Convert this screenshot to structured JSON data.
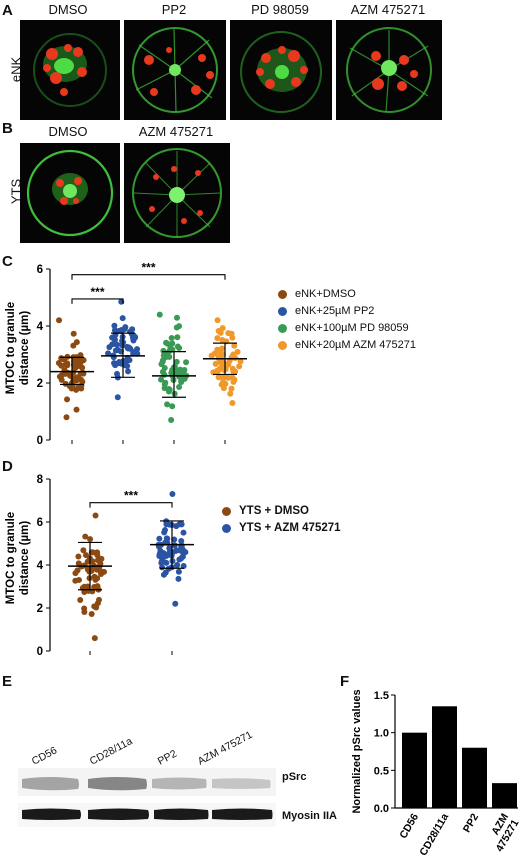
{
  "panels": {
    "A": {
      "letter": "A",
      "row_label": "eNK",
      "conditions": [
        "DMSO",
        "PP2",
        "PD 98059",
        "AZM 475271"
      ]
    },
    "B": {
      "letter": "B",
      "row_label": "YTS",
      "conditions": [
        "DMSO",
        "AZM 475271"
      ]
    },
    "C": {
      "letter": "C"
    },
    "D": {
      "letter": "D"
    },
    "E": {
      "letter": "E",
      "lanes": [
        "CD56",
        "CD28/11a",
        "PP2",
        "AZM 475271"
      ],
      "bands": [
        "pSrc",
        "Myosin IIA"
      ]
    },
    "F": {
      "letter": "F"
    }
  },
  "colors": {
    "brown": "#8B4A12",
    "blue": "#2B55A3",
    "green": "#3A9A55",
    "orange": "#F0982A",
    "micro_green": "#3FBE3A",
    "micro_red": "#E8391F"
  },
  "chart_data": [
    {
      "id": "C",
      "type": "scatter",
      "ylabel": "MTOC to granule distance (µm)",
      "ylim": [
        0,
        6
      ],
      "yticks": [
        0,
        2,
        4,
        6
      ],
      "categories": [
        "eNK+DMSO",
        "eNK+25µM PP2",
        "eNK+100µM PD 98059",
        "eNK+20µM AZM 475271"
      ],
      "series": [
        {
          "name": "eNK+DMSO",
          "color": "#8B4A12",
          "mean": 2.4,
          "sd_low": 1.95,
          "sd_high": 2.9,
          "min": 0.8,
          "max": 4.2,
          "n": 60
        },
        {
          "name": "eNK+25µM PP2",
          "color": "#2B55A3",
          "mean": 2.95,
          "sd_low": 2.2,
          "sd_high": 3.75,
          "min": 1.5,
          "max": 4.85,
          "n": 60
        },
        {
          "name": "eNK+100µM PD 98059",
          "color": "#3A9A55",
          "mean": 2.25,
          "sd_low": 1.5,
          "sd_high": 3.1,
          "min": 0.7,
          "max": 4.4,
          "n": 60
        },
        {
          "name": "eNK+20µM AZM 475271",
          "color": "#F0982A",
          "mean": 2.85,
          "sd_low": 2.3,
          "sd_high": 3.4,
          "min": 1.3,
          "max": 4.2,
          "n": 60
        }
      ],
      "significance": [
        {
          "from": 0,
          "to": 1,
          "label": "***",
          "y": 4.95
        },
        {
          "from": 0,
          "to": 3,
          "label": "***",
          "y": 5.8
        }
      ]
    },
    {
      "id": "D",
      "type": "scatter",
      "ylabel": "MTOC to granule distance (µm)",
      "ylim": [
        0,
        8
      ],
      "yticks": [
        0,
        2,
        4,
        6,
        8
      ],
      "categories": [
        "YTS + DMSO",
        "YTS + AZM 475271"
      ],
      "series": [
        {
          "name": "YTS + DMSO",
          "color": "#8B4A12",
          "mean": 3.95,
          "sd_low": 2.85,
          "sd_high": 5.05,
          "min": 0.6,
          "max": 6.3,
          "n": 60
        },
        {
          "name": "YTS + AZM 475271",
          "color": "#2B55A3",
          "mean": 4.95,
          "sd_low": 3.85,
          "sd_high": 6.05,
          "min": 2.2,
          "max": 7.3,
          "n": 60
        }
      ],
      "significance": [
        {
          "from": 0,
          "to": 1,
          "label": "***",
          "y": 6.9
        }
      ]
    },
    {
      "id": "F",
      "type": "bar",
      "ylabel": "Normalized pSrc values",
      "ylim": [
        0,
        1.5
      ],
      "yticks": [
        0.0,
        0.5,
        1.0,
        1.5
      ],
      "categories": [
        "CD56",
        "CD28/11a",
        "PP2",
        "AZM 475271"
      ],
      "values": [
        1.0,
        1.35,
        0.8,
        0.33
      ]
    }
  ]
}
